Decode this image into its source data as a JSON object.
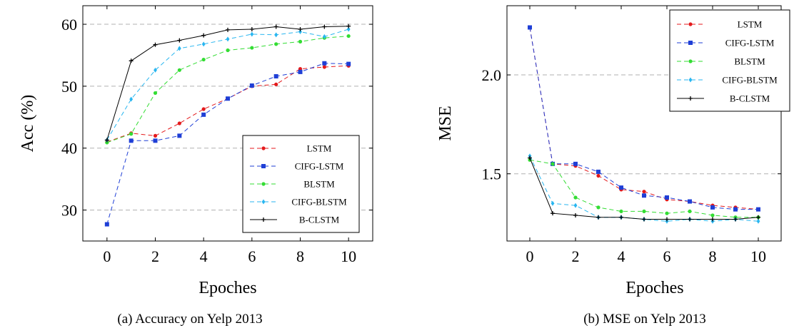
{
  "colors": {
    "LSTM": "#e41a1c",
    "CIFG-LSTM": "#1f3fd6",
    "BLSTM": "#33dd33",
    "CIFG-BLSTM": "#29b6f0",
    "B-CLSTM": "#000000",
    "grid": "#b0b0b0"
  },
  "chart_data": [
    {
      "type": "line",
      "caption": "(a) Accuracy on Yelp 2013",
      "xlabel": "Epoches",
      "ylabel": "Acc (%)",
      "xlim": [
        -1,
        11
      ],
      "ylim": [
        25,
        63
      ],
      "xticks": [
        0,
        2,
        4,
        6,
        8,
        10
      ],
      "yticks": [
        30,
        40,
        50,
        60
      ],
      "grid": "horizontal dashed",
      "legend_position": "bottom-right",
      "x": [
        0,
        1,
        2,
        3,
        4,
        5,
        6,
        7,
        8,
        9,
        10
      ],
      "series": [
        {
          "name": "LSTM",
          "style": "dashed",
          "marker": "circle",
          "values": [
            41.0,
            42.4,
            42.0,
            44.0,
            46.3,
            48.0,
            50.0,
            50.3,
            52.8,
            53.1,
            53.3
          ]
        },
        {
          "name": "CIFG-LSTM",
          "style": "dashed",
          "marker": "square",
          "values": [
            27.7,
            41.2,
            41.2,
            42.0,
            45.4,
            48.0,
            50.1,
            51.6,
            52.3,
            53.7,
            53.6
          ]
        },
        {
          "name": "BLSTM",
          "style": "dashed",
          "marker": "circle",
          "values": [
            40.9,
            42.3,
            48.9,
            52.6,
            54.3,
            55.8,
            56.2,
            56.8,
            57.2,
            57.8,
            58.1
          ]
        },
        {
          "name": "CIFG-BLSTM",
          "style": "dashed",
          "marker": "diamond",
          "values": [
            41.3,
            47.9,
            52.6,
            56.1,
            56.8,
            57.6,
            58.4,
            58.3,
            58.8,
            58.0,
            59.2
          ]
        },
        {
          "name": "B-CLSTM",
          "style": "solid",
          "marker": "plus",
          "values": [
            41.3,
            54.1,
            56.7,
            57.4,
            58.2,
            59.1,
            59.2,
            59.6,
            59.2,
            59.6,
            59.7
          ]
        }
      ]
    },
    {
      "type": "line",
      "caption": "(b) MSE on Yelp 2013",
      "xlabel": "Epoches",
      "ylabel": "MSE",
      "xlim": [
        -1,
        11
      ],
      "ylim": [
        1.16,
        2.35
      ],
      "xticks": [
        0,
        2,
        4,
        6,
        8,
        10
      ],
      "yticks": [
        1.5,
        2.0
      ],
      "ytick_labels": [
        "1.5",
        "2.0"
      ],
      "grid": "horizontal dashed",
      "legend_position": "top-right",
      "x": [
        0,
        1,
        2,
        3,
        4,
        5,
        6,
        7,
        8,
        9,
        10
      ],
      "series": [
        {
          "name": "LSTM",
          "style": "dashed",
          "marker": "circle",
          "values": [
            2.24,
            1.55,
            1.54,
            1.49,
            1.42,
            1.41,
            1.37,
            1.36,
            1.34,
            1.33,
            1.32
          ]
        },
        {
          "name": "CIFG-LSTM",
          "style": "dashed",
          "marker": "square",
          "values": [
            2.24,
            1.55,
            1.55,
            1.51,
            1.43,
            1.39,
            1.38,
            1.36,
            1.33,
            1.32,
            1.32
          ]
        },
        {
          "name": "BLSTM",
          "style": "dashed",
          "marker": "circle",
          "values": [
            1.57,
            1.55,
            1.38,
            1.33,
            1.31,
            1.31,
            1.3,
            1.31,
            1.29,
            1.28,
            1.28
          ]
        },
        {
          "name": "CIFG-BLSTM",
          "style": "dashed",
          "marker": "diamond",
          "values": [
            1.59,
            1.35,
            1.34,
            1.28,
            1.28,
            1.27,
            1.26,
            1.27,
            1.26,
            1.27,
            1.26
          ]
        },
        {
          "name": "B-CLSTM",
          "style": "solid",
          "marker": "plus",
          "values": [
            1.58,
            1.3,
            1.29,
            1.28,
            1.28,
            1.27,
            1.27,
            1.27,
            1.27,
            1.27,
            1.28
          ]
        }
      ]
    }
  ]
}
